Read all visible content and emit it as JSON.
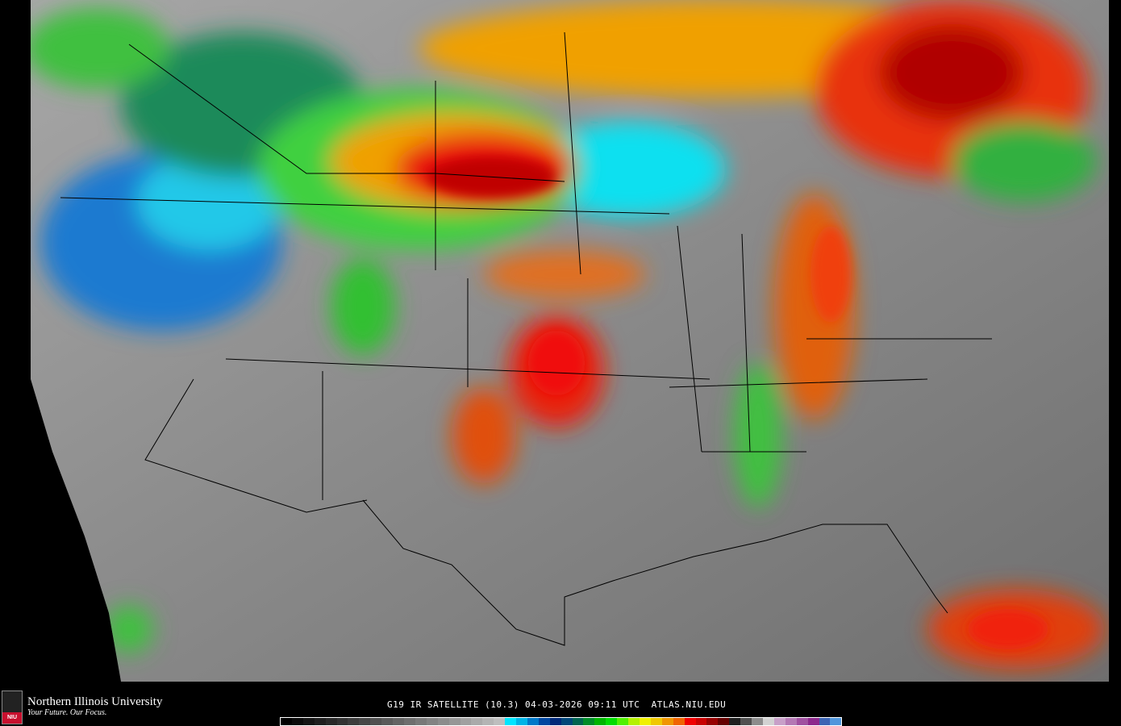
{
  "map": {
    "product": "IR satellite imagery",
    "region": "CONUS"
  },
  "footer": {
    "logo_name": "Northern Illinois University",
    "logo_tagline": "Your Future. Our Focus.",
    "logo_badge": "NIU",
    "caption": "G19 IR SATELLITE (10.3) 04-03-2026 09:11 UTC  ATLAS.NIU.EDU"
  },
  "colorbar": {
    "colors": [
      "#000000",
      "#0a0a0a",
      "#141414",
      "#1e1e1e",
      "#282828",
      "#323232",
      "#3c3c3c",
      "#464646",
      "#505050",
      "#5a5a5a",
      "#646464",
      "#6e6e6e",
      "#787878",
      "#828282",
      "#8c8c8c",
      "#969696",
      "#a0a0a0",
      "#aaaaaa",
      "#b4b4b4",
      "#bebebe",
      "#00e5ff",
      "#00b4e6",
      "#0078c8",
      "#0046a0",
      "#002878",
      "#004678",
      "#006450",
      "#008c28",
      "#00b400",
      "#00dc00",
      "#50f000",
      "#b4f000",
      "#f0f000",
      "#f0c800",
      "#f09600",
      "#f06400",
      "#f00000",
      "#c80000",
      "#960000",
      "#640000",
      "#1e1e1e",
      "#505050",
      "#8c8c8c",
      "#d2d2d2",
      "#c8a0c8",
      "#b478b4",
      "#a050a0",
      "#8c288c",
      "#3c64b4",
      "#5096dc"
    ]
  }
}
